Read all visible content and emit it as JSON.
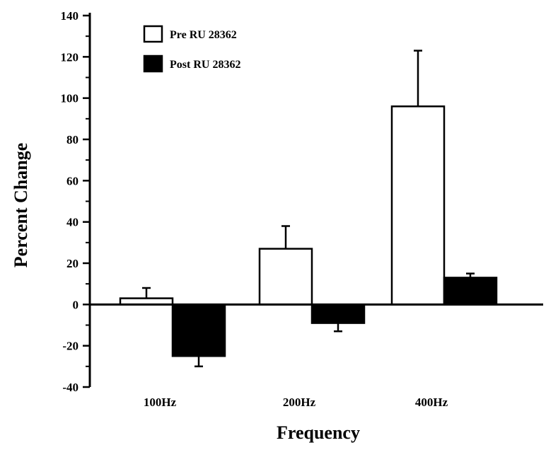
{
  "chart_data": {
    "type": "bar",
    "title": "",
    "xlabel": "Frequency",
    "ylabel": "Percent Change",
    "categories": [
      "100Hz",
      "200Hz",
      "400Hz"
    ],
    "series": [
      {
        "name": "Pre RU 28362",
        "values": [
          3,
          27,
          96
        ],
        "errors": [
          5,
          11,
          27
        ],
        "color": "#ffffff",
        "stroke": "#000000"
      },
      {
        "name": "Post RU 28362",
        "values": [
          -25,
          -9,
          13
        ],
        "errors": [
          5,
          4,
          2
        ],
        "color": "#000000",
        "stroke": "#000000"
      }
    ],
    "ylim": [
      -40,
      140
    ],
    "yticks": [
      -40,
      -20,
      0,
      20,
      40,
      60,
      80,
      100,
      120,
      140
    ],
    "grid": false,
    "legend": "top-left"
  }
}
